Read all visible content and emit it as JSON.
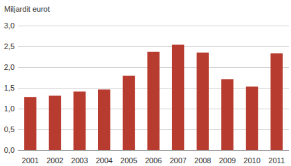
{
  "chart_data": {
    "type": "bar",
    "y_label": "Miljardit eurot",
    "categories": [
      "2001",
      "2002",
      "2003",
      "2004",
      "2005",
      "2006",
      "2007",
      "2008",
      "2009",
      "2010",
      "2011"
    ],
    "values": [
      1.28,
      1.31,
      1.41,
      1.46,
      1.79,
      2.37,
      2.54,
      2.35,
      1.71,
      1.53,
      2.33
    ],
    "color": "#b83b2f",
    "ylim": [
      0,
      3
    ],
    "yticks": [
      {
        "value": 0,
        "label": "0,0"
      },
      {
        "value": 0.5,
        "label": "0,5"
      },
      {
        "value": 1,
        "label": "1,0"
      },
      {
        "value": 1.5,
        "label": "1,5"
      },
      {
        "value": 2,
        "label": "2,0"
      },
      {
        "value": 2.5,
        "label": "2,5"
      },
      {
        "value": 3,
        "label": "3,0"
      }
    ],
    "grid": true
  }
}
